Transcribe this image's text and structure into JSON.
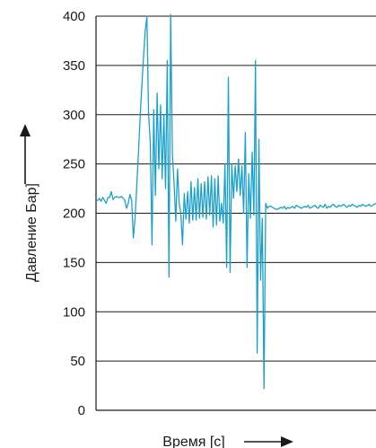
{
  "chart_data": {
    "type": "line",
    "xlabel": "Время [c]",
    "ylabel": "Давление Бар]",
    "ylim": [
      0,
      400
    ],
    "yticks": [
      0,
      50,
      100,
      150,
      200,
      250,
      300,
      350,
      400
    ],
    "grid": "horizontal",
    "line_color": "#1ba0cc",
    "series": [
      {
        "x": [
          0,
          2,
          4,
          6,
          8,
          10,
          12,
          14,
          16,
          18,
          20,
          22,
          24,
          26,
          28,
          30,
          32,
          34,
          36,
          38,
          40,
          42,
          44,
          46,
          48,
          50,
          52,
          54,
          56,
          58,
          60,
          62,
          64,
          66,
          68,
          70,
          72,
          74,
          76,
          78,
          80,
          82,
          84,
          86,
          88,
          90,
          92,
          94,
          96,
          98,
          100,
          102,
          104,
          106,
          108,
          110,
          112,
          114,
          116,
          118,
          120,
          122,
          124,
          126,
          128,
          130,
          132,
          134,
          136,
          138,
          140,
          142,
          144,
          146,
          148,
          150,
          152,
          154,
          156,
          158,
          160,
          162,
          164,
          166,
          168,
          170,
          172,
          174,
          176,
          178,
          180,
          182,
          184,
          186,
          188,
          190,
          192,
          194,
          196,
          198,
          200,
          202,
          204,
          206,
          208,
          210,
          212,
          214,
          216,
          218,
          220,
          222,
          224,
          226,
          228,
          230,
          232,
          234,
          236,
          238,
          240,
          242,
          244,
          246,
          248,
          250,
          252,
          254,
          256,
          258,
          260,
          262,
          264,
          266,
          268,
          270,
          272,
          274,
          276,
          278,
          280,
          282,
          284,
          286,
          288,
          290,
          292,
          294,
          296,
          298,
          300,
          302,
          304,
          306,
          308,
          310,
          312,
          314,
          316,
          318,
          320,
          322,
          324,
          326,
          328,
          330
        ],
        "values": [
          213,
          213,
          215,
          212,
          216,
          213,
          210,
          216,
          216,
          222,
          214,
          216,
          217,
          216,
          216,
          217,
          215,
          213,
          205,
          210,
          219,
          213,
          175,
          195,
          228,
          262,
          298,
          330,
          358,
          385,
          400,
          300,
          272,
          168,
          305,
          218,
          322,
          245,
          310,
          235,
          300,
          225,
          355,
          135,
          402,
          260,
          230,
          192,
          245,
          210,
          200,
          168,
          220,
          194,
          222,
          190,
          232,
          193,
          226,
          193,
          235,
          195,
          230,
          196,
          232,
          194,
          237,
          198,
          238,
          186,
          235,
          188,
          238,
          192,
          210,
          190,
          250,
          145,
          338,
          140,
          250,
          215,
          248,
          222,
          255,
          218,
          248,
          200,
          282,
          145,
          240,
          195,
          262,
          198,
          355,
          58,
          275,
          132,
          195,
          22,
          210,
          205,
          207,
          207,
          206,
          205,
          204,
          204,
          205,
          206,
          205,
          207,
          204,
          206,
          205,
          206,
          207,
          205,
          208,
          207,
          206,
          205,
          206,
          207,
          206,
          208,
          205,
          206,
          207,
          208,
          206,
          205,
          208,
          207,
          206,
          209,
          205,
          207,
          206,
          208,
          209,
          207,
          206,
          208,
          207,
          208,
          209,
          207,
          206,
          208,
          207,
          209,
          208,
          207,
          206,
          208,
          207,
          209,
          208,
          207,
          208,
          209,
          207,
          208,
          209,
          210
        ]
      }
    ]
  }
}
